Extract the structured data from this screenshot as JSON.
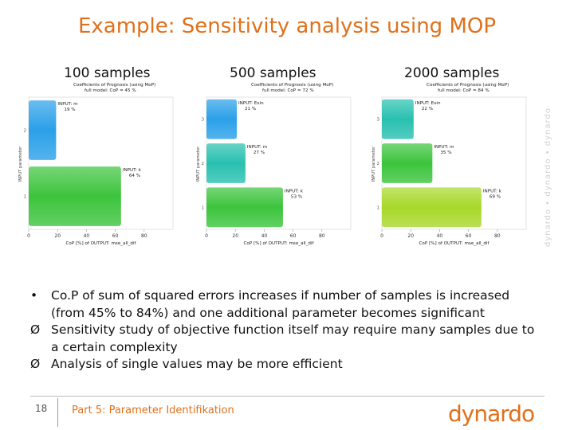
{
  "title": "Example: Sensitivity analysis using MOP",
  "columns": [
    "100 samples",
    "500 samples",
    "2000 samples"
  ],
  "side_watermark": "dynardo • dynardo • dynardo",
  "chart_data": [
    {
      "type": "bar",
      "title": "Coefficients of Prognosis (using MoP)",
      "subtitle": "full model: CoP = 45 %",
      "xlabel": "CoP [%] of OUTPUT: mse_all_dif",
      "ylabel": "INPUT parameter",
      "xlim": [
        0,
        100
      ],
      "xticks": [
        "0",
        "20",
        "40",
        "60",
        "80"
      ],
      "bars": [
        {
          "label": "INPUT: k",
          "value": 64,
          "color": "#3cc43c"
        },
        {
          "label": "INPUT: m",
          "value": 19,
          "color": "#2aa0e8"
        }
      ]
    },
    {
      "type": "bar",
      "title": "Coefficients of Prognosis (using MoP)",
      "subtitle": "full model: CoP = 72 %",
      "xlabel": "CoP [%] of OUTPUT: mse_all_dif",
      "ylabel": "INPUT parameter",
      "xlim": [
        0,
        100
      ],
      "xticks": [
        "0",
        "20",
        "40",
        "60",
        "80"
      ],
      "bars": [
        {
          "label": "INPUT: k",
          "value": 53,
          "color": "#3cc43c"
        },
        {
          "label": "INPUT: m",
          "value": 27,
          "color": "#28c0b0"
        },
        {
          "label": "INPUT: Exin",
          "value": 21,
          "color": "#2aa0e8"
        }
      ]
    },
    {
      "type": "bar",
      "title": "Coefficients of Prognosis (using MoP)",
      "subtitle": "full model: CoP = 84 %",
      "xlabel": "CoP [%] of OUTPUT: mse_all_dif",
      "ylabel": "INPUT parameter",
      "xlim": [
        0,
        100
      ],
      "xticks": [
        "0",
        "20",
        "40",
        "60",
        "80"
      ],
      "bars": [
        {
          "label": "INPUT: k",
          "value": 69,
          "color": "#a8d82a"
        },
        {
          "label": "INPUT: m",
          "value": 35,
          "color": "#3cc43c"
        },
        {
          "label": "INPUT: Exin",
          "value": 22,
          "color": "#28c0b0"
        }
      ]
    }
  ],
  "bullets": [
    {
      "marker": "•",
      "text": "Co.P of sum of squared errors increases if number of samples is increased (from 45% to 84%) and one additional parameter becomes significant"
    },
    {
      "marker": "Ø",
      "text": "Sensitivity study of objective function itself may require many samples due to a certain complexity"
    },
    {
      "marker": "Ø",
      "text": "Analysis of single values may be more efficient"
    }
  ],
  "footer": {
    "page_number": "18",
    "text": "Part 5: Parameter Identifikation",
    "logo": "dynardo"
  }
}
